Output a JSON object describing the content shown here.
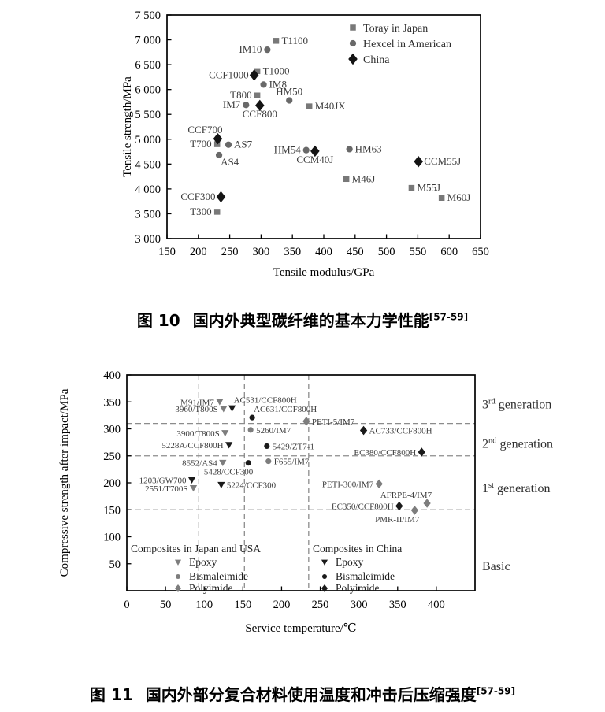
{
  "figures": {
    "fig10": {
      "label": "图 10",
      "title": "国内外典型碳纤维的基本力学性能",
      "ref": "[57-59]"
    },
    "fig11": {
      "label": "图 11",
      "title": "国内外部分复合材料使用温度和冲击后压缩强度",
      "ref": "[57-59]"
    }
  },
  "colors": {
    "japan_gray": "#787878",
    "hexcel_gray": "#696969",
    "china_black": "#141414",
    "group_gray": "#7d7d7d",
    "group_black": "#1a1a1a",
    "dash_gray": "#8c8c8c",
    "point_label": "#3d3d3d"
  },
  "chart_data": [
    {
      "type": "scatter",
      "title": "",
      "xlabel": "Tensile modulus/GPa",
      "ylabel": "Tensile strength/MPa",
      "xlim": [
        150,
        650
      ],
      "ylim": [
        3000,
        7500
      ],
      "xticks": [
        150,
        200,
        250,
        300,
        350,
        400,
        450,
        500,
        550,
        600,
        650
      ],
      "yticks": [
        3000,
        3500,
        4000,
        4500,
        5000,
        5500,
        6000,
        6500,
        7000,
        7500
      ],
      "grid": false,
      "legend_position": "top-right-inside",
      "series": [
        {
          "name": "Toray in Japan",
          "marker": "square",
          "color": "#787878",
          "points": [
            [
              "T1100",
              324,
              6980,
              "r"
            ],
            [
              "T1000",
              294,
              6370,
              "r"
            ],
            [
              "T800",
              294,
              5880,
              "l"
            ],
            [
              "M40JX",
              377,
              5660,
              "r"
            ],
            [
              "T700",
              230,
              4900,
              "l"
            ],
            [
              "M46J",
              436,
              4200,
              "r"
            ],
            [
              "M55J",
              540,
              4020,
              "r"
            ],
            [
              "M60J",
              588,
              3820,
              "r"
            ],
            [
              "T300",
              230,
              3540,
              "l"
            ]
          ]
        },
        {
          "name": "Hexcel in American",
          "marker": "circle",
          "color": "#696969",
          "points": [
            [
              "IM10",
              310,
              6800,
              "l"
            ],
            [
              "IM8",
              304,
              6100,
              "r"
            ],
            [
              "HM50",
              345,
              5780,
              "a"
            ],
            [
              "IM7",
              276,
              5690,
              "l"
            ],
            [
              "AS7",
              248,
              4890,
              "r"
            ],
            [
              "AS4",
              233,
              4680,
              "br"
            ],
            [
              "HM54",
              372,
              4780,
              "l"
            ],
            [
              "HM63",
              441,
              4800,
              "r"
            ]
          ]
        },
        {
          "name": "China",
          "marker": "diamond",
          "color": "#141414",
          "points": [
            [
              "CCF1000",
              289,
              6290,
              "l"
            ],
            [
              "CCF800",
              298,
              5680,
              "b"
            ],
            [
              "CCF700",
              231,
              5010,
              "al"
            ],
            [
              "CCM40J",
              386,
              4760,
              "b"
            ],
            [
              "CCM55J",
              551,
              4550,
              "r"
            ],
            [
              "CCF300",
              236,
              3840,
              "l"
            ]
          ]
        }
      ]
    },
    {
      "type": "scatter",
      "title": "",
      "xlabel": "Service temperature/℃",
      "ylabel": "Compressive strength after impact/MPa",
      "xlim": [
        0,
        450
      ],
      "ylim": [
        0,
        400
      ],
      "xticks": [
        0,
        50,
        100,
        150,
        200,
        250,
        300,
        350,
        400
      ],
      "yticks": [
        50,
        100,
        150,
        200,
        250,
        300,
        350,
        400
      ],
      "grid": false,
      "hlines_dashed": [
        310,
        250,
        150
      ],
      "vlines_dashed": [
        93,
        152,
        235
      ],
      "zones": [
        {
          "text": "3",
          "sup": "rd",
          "rest": " generation",
          "y": 345
        },
        {
          "text": "2",
          "sup": "nd",
          "rest": " generation",
          "y": 272
        },
        {
          "text": "1",
          "sup": "st",
          "rest": " generation",
          "y": 190
        },
        {
          "text": "Basic",
          "sup": "",
          "rest": "",
          "y": 45
        }
      ],
      "legend_groups": [
        {
          "title": "Composites in Japan and USA",
          "color": "#7d7d7d",
          "items": [
            {
              "label": "Epoxy",
              "marker": "triangle"
            },
            {
              "label": "Bismaleimide",
              "marker": "circle"
            },
            {
              "label": "Polyimide",
              "marker": "diamond"
            }
          ]
        },
        {
          "title": "Composites in China",
          "color": "#1a1a1a",
          "items": [
            {
              "label": "Epoxy",
              "marker": "triangle"
            },
            {
              "label": "Bismaleimide",
              "marker": "circle"
            },
            {
              "label": "Polyimide",
              "marker": "diamond"
            }
          ]
        }
      ],
      "series": [
        {
          "name": "Japan-USA Epoxy",
          "marker": "triangle",
          "color": "#7d7d7d",
          "points": [
            [
              "M91/IM7",
              120,
              350,
              "l"
            ],
            [
              "3960/T800S",
              125,
              337,
              "l"
            ],
            [
              "3900/T800S",
              127,
              292,
              "l"
            ],
            [
              "8552/AS4",
              124,
              237,
              "l"
            ],
            [
              "2551/T700S",
              86,
              190,
              "l"
            ]
          ]
        },
        {
          "name": "Japan-USA Bismaleimide",
          "marker": "circle",
          "color": "#7d7d7d",
          "points": [
            [
              "5260/IM7",
              160,
              298,
              "r"
            ],
            [
              "F655/IM7",
              183,
              240,
              "r"
            ]
          ]
        },
        {
          "name": "Japan-USA Polyimide",
          "marker": "diamond",
          "color": "#7d7d7d",
          "points": [
            [
              "PETI-5/IM7",
              232,
              314,
              "r"
            ],
            [
              "PETI-300/IM7",
              326,
              198,
              "l"
            ],
            [
              "AFRPE-4/IM7",
              388,
              162,
              "al"
            ],
            [
              "PMR-II/IM7",
              372,
              149,
              "bl"
            ]
          ]
        },
        {
          "name": "China Epoxy",
          "marker": "triangle",
          "color": "#1a1a1a",
          "points": [
            [
              "AC531/CCF800H",
              136,
              338,
              "ar"
            ],
            [
              "5228A/CCF800H",
              132,
              270,
              "l"
            ],
            [
              "5224/CCF300",
              122,
              196,
              "r"
            ],
            [
              "1203/GW700",
              84,
              205,
              "l"
            ]
          ]
        },
        {
          "name": "China Bismaleimide",
          "marker": "circle",
          "color": "#1a1a1a",
          "points": [
            [
              "AC631/CCF800H",
              162,
              321,
              "ar"
            ],
            [
              "5429/ZT7-1",
              181,
              268,
              "r"
            ],
            [
              "5428/CCF300",
              157,
              237,
              "bl"
            ]
          ]
        },
        {
          "name": "China Polyimide",
          "marker": "diamond",
          "color": "#1a1a1a",
          "points": [
            [
              "AC733/CCF800H",
              306,
              297,
              "r"
            ],
            [
              "EC380/CCF800H",
              381,
              257,
              "l"
            ],
            [
              "EC350/CCF800H",
              352,
              157,
              "l"
            ]
          ]
        }
      ]
    }
  ]
}
